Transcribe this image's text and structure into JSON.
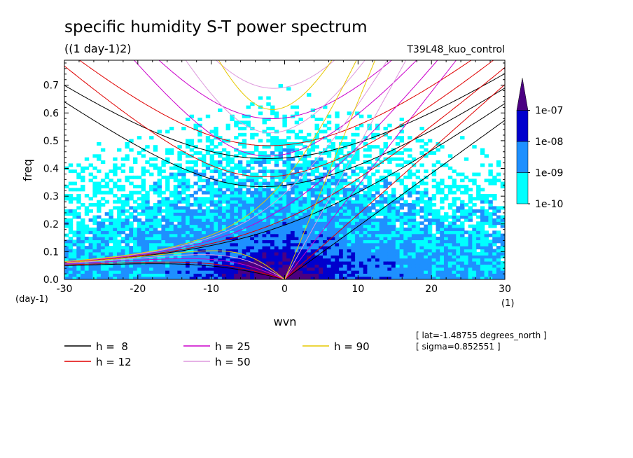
{
  "chart_data": {
    "type": "heatmap",
    "title": "specific humidity S-T power spectrum",
    "subtitle": "((1 day-1)2)",
    "run_label": "T39L48_kuo_control",
    "xlabel": "wvn",
    "ylabel": "freq",
    "x_unit_label": "(1)",
    "y_unit_label": "(day-1)",
    "xlim": [
      -30,
      30
    ],
    "ylim": [
      0,
      0.79
    ],
    "x_ticks": [
      -30,
      -20,
      -10,
      0,
      10,
      20,
      30
    ],
    "x_tick_labels": [
      "-30",
      "-20",
      "-10",
      "0",
      "10",
      "20",
      "30"
    ],
    "y_ticks": [
      0,
      0.1,
      0.2,
      0.3,
      0.4,
      0.5,
      0.6,
      0.7
    ],
    "y_tick_labels": [
      "0.0",
      "0.1",
      "0.2",
      "0.3",
      "0.4",
      "0.5",
      "0.6",
      "0.7"
    ],
    "colorbar": {
      "levels": [
        "1e-10",
        "1e-09",
        "1e-08",
        "1e-07"
      ],
      "colors": [
        "#00ffff",
        "#1e90ff",
        "#0000cd",
        "#4b0082"
      ]
    },
    "annotations": [
      "[ lat=-1.48755 degrees_north ]",
      "[ sigma=0.852551 ]"
    ],
    "dispersion_curves": [
      {
        "name": "h =  8",
        "h": 8,
        "color": "#000000"
      },
      {
        "name": "h = 12",
        "h": 12,
        "color": "#e00000"
      },
      {
        "name": "h = 25",
        "h": 25,
        "color": "#cc00cc"
      },
      {
        "name": "h = 50",
        "h": 50,
        "color": "#dd99dd"
      },
      {
        "name": "h = 90",
        "h": 90,
        "color": "#e6c800"
      }
    ]
  }
}
